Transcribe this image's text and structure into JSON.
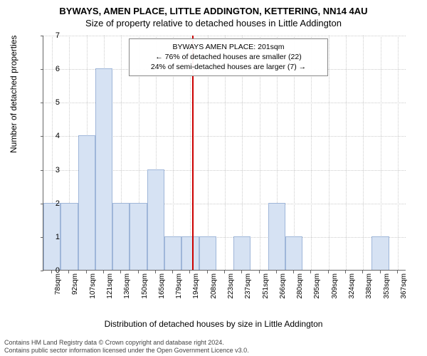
{
  "title_line1": "BYWAYS, AMEN PLACE, LITTLE ADDINGTON, KETTERING, NN14 4AU",
  "title_line2": "Size of property relative to detached houses in Little Addington",
  "ylabel": "Number of detached properties",
  "xlabel": "Distribution of detached houses by size in Little Addington",
  "chart": {
    "type": "histogram",
    "ylim": [
      0,
      7
    ],
    "ytick_step": 1,
    "bar_fill": "#d6e2f3",
    "bar_stroke": "#9fb6d9",
    "grid_color": "#cccccc",
    "background": "#ffffff",
    "categories": [
      "78sqm",
      "92sqm",
      "107sqm",
      "121sqm",
      "136sqm",
      "150sqm",
      "165sqm",
      "179sqm",
      "194sqm",
      "208sqm",
      "223sqm",
      "237sqm",
      "251sqm",
      "266sqm",
      "280sqm",
      "295sqm",
      "309sqm",
      "324sqm",
      "338sqm",
      "353sqm",
      "367sqm"
    ],
    "values": [
      2,
      2,
      4,
      6,
      2,
      2,
      3,
      1,
      1,
      1,
      0,
      1,
      0,
      2,
      1,
      0,
      0,
      0,
      0,
      1,
      0
    ],
    "reference_line": {
      "position_index": 8.6,
      "color": "#cc0000"
    }
  },
  "info_box": {
    "line1": "BYWAYS AMEN PLACE: 201sqm",
    "line2": "← 76% of detached houses are smaller (22)",
    "line3": "24% of semi-detached houses are larger (7) →"
  },
  "footer": {
    "line1": "Contains HM Land Registry data © Crown copyright and database right 2024.",
    "line2": "Contains public sector information licensed under the Open Government Licence v3.0."
  }
}
